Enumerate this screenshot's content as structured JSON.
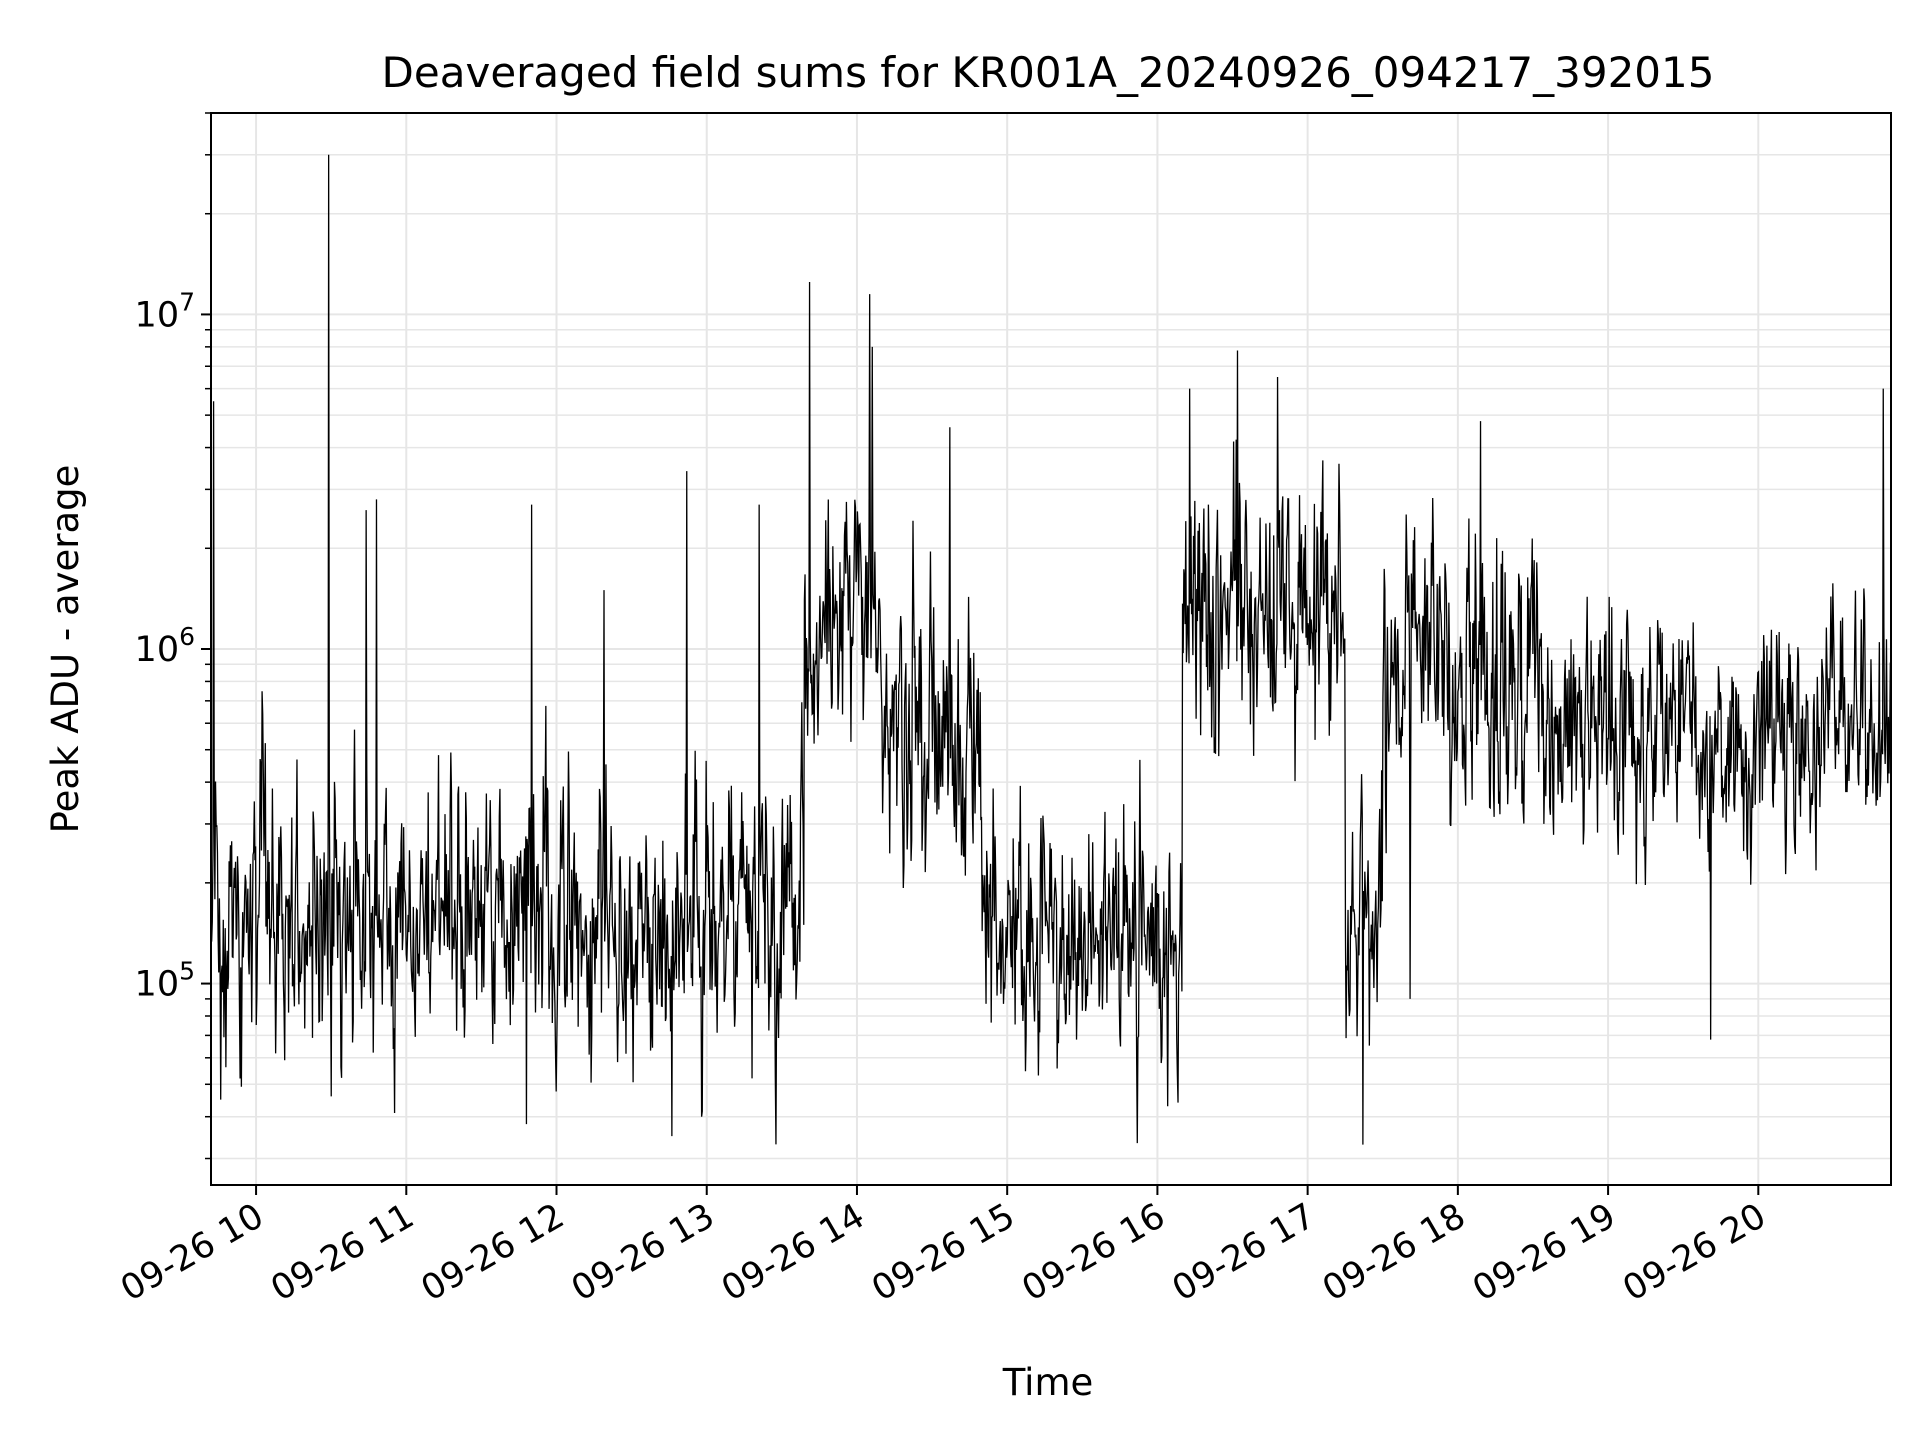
{
  "chart_data": {
    "type": "line",
    "title": "Deaveraged field sums for KR001A_20240926_094217_392015",
    "xlabel": "Time",
    "ylabel": "Peak ADU - average",
    "yscale": "log",
    "ylim": [
      25000,
      40000000
    ],
    "xlim": [
      "09-26 09:42",
      "09-26 20:53"
    ],
    "grid": true,
    "line_color": "#000000",
    "grid_color": "#e6e6e6",
    "xticks": [
      "09-26 10",
      "09-26 11",
      "09-26 12",
      "09-26 13",
      "09-26 14",
      "09-26 15",
      "09-26 16",
      "09-26 17",
      "09-26 18",
      "09-26 19",
      "09-26 20"
    ],
    "yticks": [
      {
        "base": "10",
        "exp": "5",
        "value": 100000
      },
      {
        "base": "10",
        "exp": "6",
        "value": 1000000
      },
      {
        "base": "10",
        "exp": "7",
        "value": 10000000
      }
    ],
    "series": [
      {
        "segments": [
          {
            "start": "09:42",
            "end": "13:39",
            "median": 160000,
            "spread": 0.58
          },
          {
            "start": "13:39",
            "end": "14:10",
            "median": 1100000,
            "spread": 0.55
          },
          {
            "start": "14:10",
            "end": "14:50",
            "median": 500000,
            "spread": 0.65
          },
          {
            "start": "14:50",
            "end": "16:10",
            "median": 140000,
            "spread": 0.5
          },
          {
            "start": "16:10",
            "end": "17:15",
            "median": 1300000,
            "spread": 0.6
          },
          {
            "start": "17:15",
            "end": "17:30",
            "median": 160000,
            "spread": 0.5
          },
          {
            "start": "17:30",
            "end": "18:32",
            "median": 850000,
            "spread": 0.62
          },
          {
            "start": "18:32",
            "end": "20:53",
            "median": 560000,
            "spread": 0.5
          }
        ],
        "spikes": [
          {
            "time": "09:43",
            "value": 5500000
          },
          {
            "time": "10:29",
            "value": 30000000
          },
          {
            "time": "10:44",
            "value": 2600000
          },
          {
            "time": "10:48",
            "value": 2800000
          },
          {
            "time": "11:50",
            "value": 2700000
          },
          {
            "time": "12:19",
            "value": 1500000
          },
          {
            "time": "12:52",
            "value": 3400000
          },
          {
            "time": "13:21",
            "value": 2700000
          },
          {
            "time": "13:41",
            "value": 12500000
          },
          {
            "time": "14:05",
            "value": 11500000
          },
          {
            "time": "14:06",
            "value": 8000000
          },
          {
            "time": "14:37",
            "value": 4600000
          },
          {
            "time": "16:13",
            "value": 6000000
          },
          {
            "time": "16:32",
            "value": 7800000
          },
          {
            "time": "16:48",
            "value": 6500000
          },
          {
            "time": "18:09",
            "value": 4800000
          },
          {
            "time": "20:50",
            "value": 6000000
          }
        ],
        "dips": [
          {
            "time": "09:46",
            "value": 45000
          },
          {
            "time": "10:30",
            "value": 46000
          },
          {
            "time": "11:48",
            "value": 38000
          },
          {
            "time": "12:46",
            "value": 35000
          },
          {
            "time": "12:58",
            "value": 40000
          },
          {
            "time": "16:04",
            "value": 43000
          },
          {
            "time": "17:22",
            "value": 33000
          },
          {
            "time": "17:41",
            "value": 90000
          },
          {
            "time": "19:41",
            "value": 68000
          }
        ]
      }
    ]
  }
}
